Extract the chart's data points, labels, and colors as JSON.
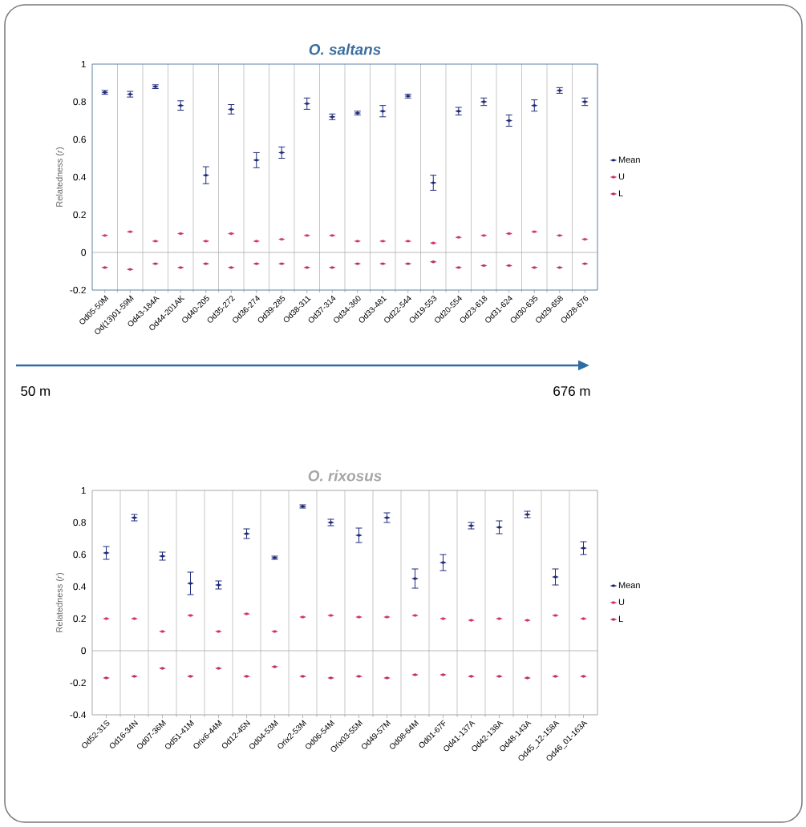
{
  "chart_data": [
    {
      "type": "scatter",
      "title": "O. saltans",
      "ylabel": "Relatedness (*r*)",
      "categories": [
        "Od05-50M",
        "Od(13)01-59M",
        "Od43-184A",
        "Od44-201AK",
        "Od40-205",
        "Od35-272",
        "Od36-274",
        "Od39-285",
        "Od38-311",
        "Od37-314",
        "Od34-360",
        "Od33-481",
        "Od22-544",
        "Od19-553",
        "Od20-554",
        "Od23-618",
        "Od31-624",
        "Od30-635",
        "Od29-658",
        "Od28-676"
      ],
      "series": [
        {
          "name": "Mean",
          "color": "#1f2a7a",
          "values": [
            0.85,
            0.84,
            0.88,
            0.78,
            0.41,
            0.76,
            0.49,
            0.53,
            0.79,
            0.72,
            0.74,
            0.75,
            0.83,
            0.37,
            0.75,
            0.8,
            0.7,
            0.78,
            0.86,
            0.8
          ],
          "errors": [
            0.01,
            0.015,
            0.01,
            0.025,
            0.045,
            0.025,
            0.04,
            0.03,
            0.03,
            0.015,
            0.01,
            0.03,
            0.01,
            0.04,
            0.02,
            0.02,
            0.03,
            0.03,
            0.015,
            0.02
          ]
        },
        {
          "name": "U",
          "color": "#d6336c",
          "values": [
            0.09,
            0.11,
            0.06,
            0.1,
            0.06,
            0.1,
            0.06,
            0.07,
            0.09,
            0.09,
            0.06,
            0.06,
            0.06,
            0.05,
            0.08,
            0.09,
            0.1,
            0.11,
            0.09,
            0.07
          ]
        },
        {
          "name": "L",
          "color": "#c0305a",
          "values": [
            -0.08,
            -0.09,
            -0.06,
            -0.08,
            -0.06,
            -0.08,
            -0.06,
            -0.06,
            -0.08,
            -0.08,
            -0.06,
            -0.06,
            -0.06,
            -0.05,
            -0.08,
            -0.07,
            -0.07,
            -0.08,
            -0.08,
            -0.06
          ]
        }
      ],
      "ylim": [
        -0.2,
        1
      ],
      "yticks": [
        -0.2,
        0,
        0.2,
        0.4,
        0.6,
        0.8,
        1
      ],
      "grid": "x",
      "legend": "right",
      "marker": "diamond",
      "ref_lines": [
        {
          "axis": "y",
          "value": 0
        }
      ],
      "annotations": [
        "50 m",
        "676 m"
      ]
    },
    {
      "type": "scatter",
      "title": "O. rixosus",
      "ylabel": "Relatedness (*r*)",
      "categories": [
        "Od52-31S",
        "Od16-34N",
        "Od07-36M",
        "Od51-41M",
        "Orix6-44M",
        "Od12-45N",
        "Od04-53M",
        "Orix2-53M",
        "Od06-54M",
        "Orix03-55M",
        "Od49-57M",
        "Od08-64M",
        "Od01-67F",
        "Od41-137A",
        "Od42-138A",
        "Od48-143A",
        "Od45_12-158A",
        "Od46_01-163A"
      ],
      "series": [
        {
          "name": "Mean",
          "color": "#1f2a7a",
          "values": [
            0.61,
            0.83,
            0.59,
            0.42,
            0.41,
            0.73,
            0.58,
            0.9,
            0.8,
            0.72,
            0.83,
            0.45,
            0.55,
            0.78,
            0.77,
            0.85,
            0.46,
            0.64
          ],
          "errors": [
            0.04,
            0.02,
            0.025,
            0.07,
            0.025,
            0.03,
            0.01,
            0.01,
            0.02,
            0.045,
            0.03,
            0.06,
            0.05,
            0.02,
            0.04,
            0.02,
            0.05,
            0.04
          ]
        },
        {
          "name": "U",
          "color": "#d6336c",
          "values": [
            0.2,
            0.2,
            0.12,
            0.22,
            0.12,
            0.23,
            0.12,
            0.21,
            0.22,
            0.21,
            0.21,
            0.22,
            0.2,
            0.19,
            0.2,
            0.19,
            0.22,
            0.2
          ]
        },
        {
          "name": "L",
          "color": "#c0305a",
          "values": [
            -0.17,
            -0.16,
            -0.11,
            -0.16,
            -0.11,
            -0.16,
            -0.1,
            -0.16,
            -0.17,
            -0.16,
            -0.17,
            -0.15,
            -0.15,
            -0.16,
            -0.16,
            -0.17,
            -0.16,
            -0.16
          ]
        }
      ],
      "ylim": [
        -0.4,
        1
      ],
      "yticks": [
        -0.4,
        -0.2,
        0,
        0.2,
        0.4,
        0.6,
        0.8,
        1
      ],
      "grid": "x",
      "legend": "right",
      "marker": "diamond",
      "ref_lines": [
        {
          "axis": "y",
          "value": 0
        }
      ]
    }
  ]
}
